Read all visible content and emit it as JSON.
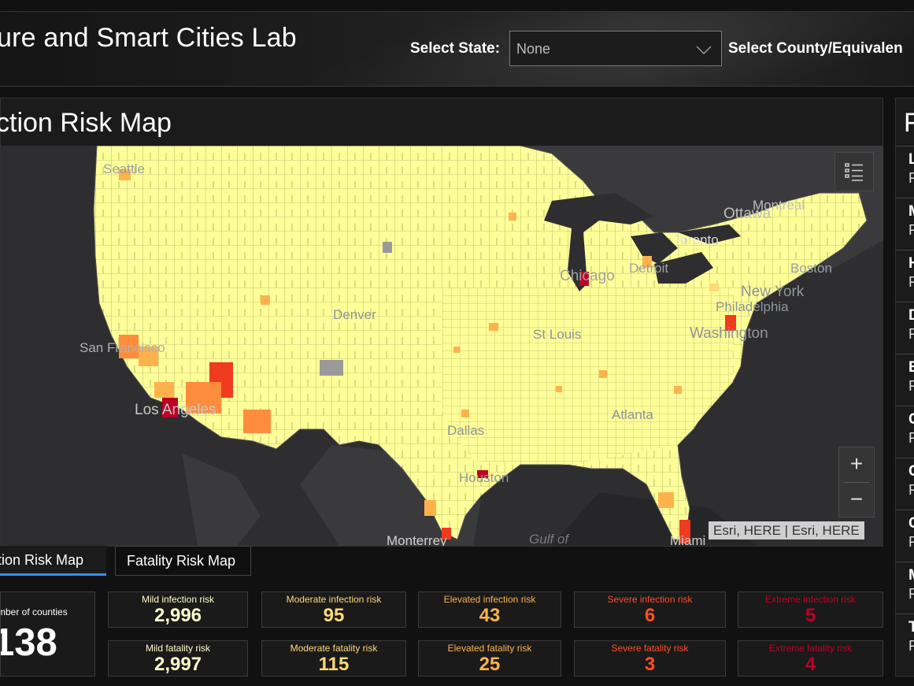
{
  "header": {
    "title": "ure and Smart Cities Lab",
    "state_label": "Select State:",
    "state_value": "None",
    "county_label": "Select County/Equivalen"
  },
  "map": {
    "title": "ction Risk Map",
    "attribution": "Esri, HERE | Esri, HERE",
    "zoom_in": "+",
    "zoom_out": "−",
    "labels": [
      "Seattle",
      "Ottawa",
      "Montreal",
      "Toronto",
      "Chicago",
      "Detroit",
      "Boston",
      "New York",
      "Philadelphia",
      "Denver",
      "San Francisco",
      "St Louis",
      "Washington",
      "Los Angeles",
      "Atlanta",
      "Dallas",
      "Houston",
      "Monterrey",
      "Gulf of",
      "Miami"
    ]
  },
  "tabs": {
    "infection": "ction Risk Map",
    "fatality": "Fatality Risk Map"
  },
  "summary": {
    "count_label": "mber of counties",
    "count_value": "138",
    "infection": [
      {
        "label": "Mild infection risk",
        "value": "2,996"
      },
      {
        "label": "Moderate infection risk",
        "value": "95"
      },
      {
        "label": "Elevated infection risk",
        "value": "43"
      },
      {
        "label": "Severe infection risk",
        "value": "6"
      },
      {
        "label": "Extreme infection risk",
        "value": "5"
      }
    ],
    "fatality": [
      {
        "label": "Mild fatality risk",
        "value": "2,997"
      },
      {
        "label": "Moderate fatality risk",
        "value": "115"
      },
      {
        "label": "Elevated fatality risk",
        "value": "25"
      },
      {
        "label": "Severe fatality risk",
        "value": "3"
      },
      {
        "label": "Extreme fatality risk",
        "value": "4"
      }
    ]
  },
  "side_panel": {
    "title": "F",
    "items": [
      {
        "a": "L",
        "b": "F"
      },
      {
        "a": "M",
        "b": "F"
      },
      {
        "a": "H",
        "b": "F"
      },
      {
        "a": "D",
        "b": "F"
      },
      {
        "a": "E",
        "b": "F"
      },
      {
        "a": "C",
        "b": "F"
      },
      {
        "a": "C",
        "b": "F"
      },
      {
        "a": "C",
        "b": "F"
      },
      {
        "a": "M",
        "b": "F"
      },
      {
        "a": "T",
        "b": "F"
      }
    ]
  },
  "colors": {
    "mild": "#ffff99",
    "moderate": "#fed976",
    "elevated": "#feb24c",
    "severe": "#f03b20",
    "extreme": "#bd0026",
    "accent": "#2f8eff"
  }
}
